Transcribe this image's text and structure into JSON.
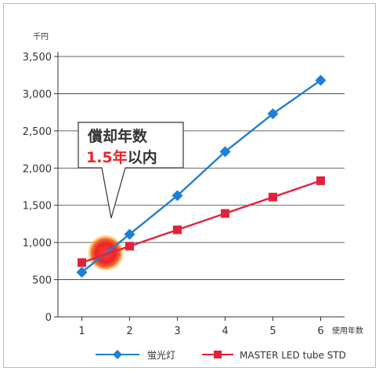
{
  "chart_data": {
    "type": "line",
    "ylabel": "千円",
    "xlabel": "使用年数",
    "x": [
      1,
      2,
      3,
      4,
      5,
      6
    ],
    "xlim": [
      0.5,
      6.5
    ],
    "ylim": [
      0,
      3500
    ],
    "yticks": [
      0,
      500,
      1000,
      1500,
      2000,
      2500,
      3000,
      3500
    ],
    "ytick_labels": [
      "0",
      "500",
      "1,000",
      "1,500",
      "2,000",
      "2,500",
      "3,000",
      "3,500"
    ],
    "xtick_labels": [
      "1",
      "2",
      "3",
      "4",
      "5",
      "6"
    ],
    "grid": "horizontal",
    "legend_position": "bottom",
    "series": [
      {
        "name": "蛍光灯",
        "values": [
          600,
          1110,
          1630,
          2220,
          2730,
          3180
        ],
        "color": "#1f7ed6",
        "marker": "diamond"
      },
      {
        "name": "MASTER LED tube STD",
        "values": [
          730,
          950,
          1170,
          1390,
          1610,
          1830
        ],
        "color": "#e0233a",
        "marker": "square"
      }
    ],
    "annotation": {
      "line1": "償却年数",
      "line2_number": "1.5",
      "line2_year": "年",
      "line2_rest": "以内",
      "point_x": 1.5,
      "point_y": 860,
      "highlight_color": "#e8262a"
    }
  }
}
